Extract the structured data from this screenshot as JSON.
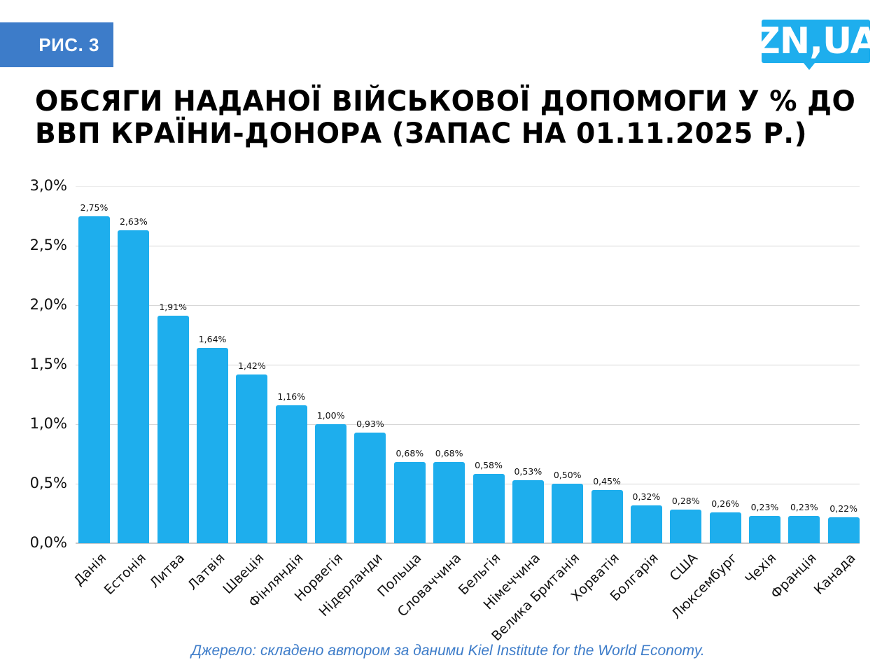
{
  "header": {
    "figure_badge": "РИС. 3",
    "logo": "ZN,UA",
    "title": "ОБСЯГИ НАДАНОЇ ВІЙСЬКОВОЇ ДОПОМОГИ У % ДО ВВП КРАЇНИ-ДОНОРА (ЗАПАС НА 01.11.2025 Р.)",
    "title_line1": "ОБСЯГИ НАДАНОЇ ВІЙСЬКОВОЇ ДОПОМОГИ У % ДО",
    "title_line2": "ВВП КРАЇНИ-ДОНОРА (ЗАПАС НА 01.11.2025 Р.)"
  },
  "colors": {
    "bar": "#1eaeed",
    "badge": "#3d7cc9",
    "logo": "#1eaeed",
    "source_text": "#3d7cc9"
  },
  "footer": {
    "source": "Джерело: складено автором за даними Kiel Institute for the World Economy."
  },
  "chart_data": {
    "type": "bar",
    "title": "ОБСЯГИ НАДАНОЇ ВІЙСЬКОВОЇ ДОПОМОГИ У % ДО ВВП КРАЇНИ-ДОНОРА (ЗАПАС НА 01.11.2025 Р.)",
    "xlabel": "",
    "ylabel": "",
    "ylim": [
      0,
      3.0
    ],
    "yticks": [
      "0,0%",
      "0,5%",
      "1,0%",
      "1,5%",
      "2,0%",
      "2,5%",
      "3,0%"
    ],
    "grid": true,
    "legend": "none",
    "categories": [
      "Данія",
      "Естонія",
      "Литва",
      "Латвія",
      "Швеція",
      "Фінляндія",
      "Норвегія",
      "Нідерланди",
      "Польща",
      "Словаччина",
      "Бельгія",
      "Німеччина",
      "Велика Британія",
      "Хорватія",
      "Болгарія",
      "США",
      "Люксембург",
      "Чехія",
      "Франція",
      "Канада"
    ],
    "values": [
      2.75,
      2.63,
      1.91,
      1.64,
      1.42,
      1.16,
      1.0,
      0.93,
      0.68,
      0.68,
      0.58,
      0.53,
      0.5,
      0.45,
      0.32,
      0.28,
      0.26,
      0.23,
      0.23,
      0.22
    ],
    "value_labels": [
      "2,75%",
      "2,63%",
      "1,91%",
      "1,64%",
      "1,42%",
      "1,16%",
      "1,00%",
      "0,93%",
      "0,68%",
      "0,68%",
      "0,58%",
      "0,53%",
      "0,50%",
      "0,45%",
      "0,32%",
      "0,28%",
      "0,26%",
      "0,23%",
      "0,23%",
      "0,22%"
    ],
    "annotations": [
      "Джерело: складено автором за даними Kiel Institute for the World Economy."
    ]
  }
}
